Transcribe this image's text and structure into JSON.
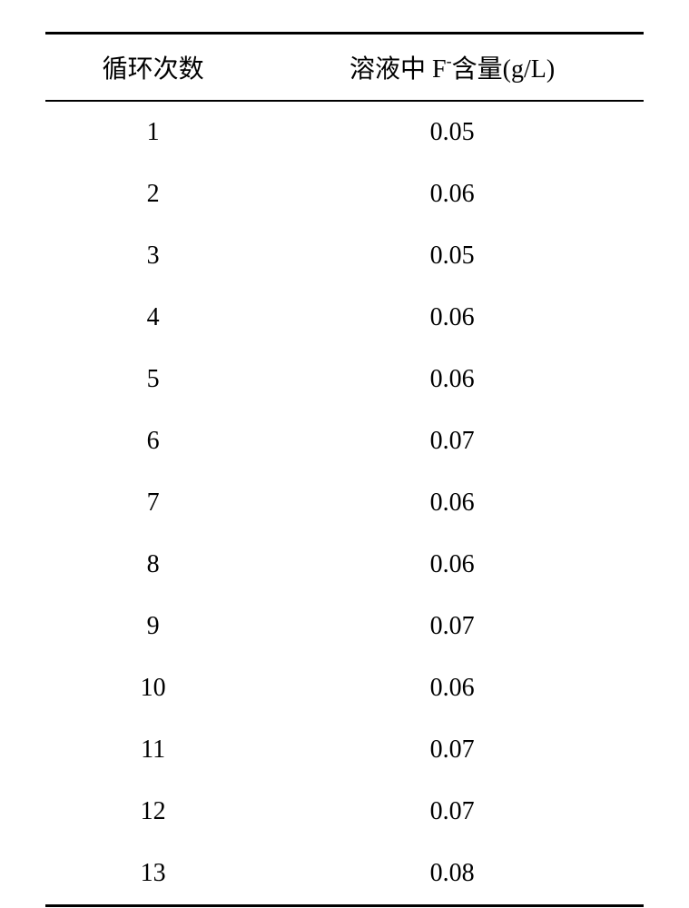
{
  "table": {
    "headers": {
      "col1": "循环次数",
      "col2_prefix": "溶液中 F",
      "col2_superscript": "-",
      "col2_suffix": "含量(g/L)"
    },
    "rows": [
      {
        "cycle": "1",
        "value": "0.05"
      },
      {
        "cycle": "2",
        "value": "0.06"
      },
      {
        "cycle": "3",
        "value": "0.05"
      },
      {
        "cycle": "4",
        "value": "0.06"
      },
      {
        "cycle": "5",
        "value": "0.06"
      },
      {
        "cycle": "6",
        "value": "0.07"
      },
      {
        "cycle": "7",
        "value": "0.06"
      },
      {
        "cycle": "8",
        "value": "0.06"
      },
      {
        "cycle": "9",
        "value": "0.07"
      },
      {
        "cycle": "10",
        "value": "0.06"
      },
      {
        "cycle": "11",
        "value": "0.07"
      },
      {
        "cycle": "12",
        "value": "0.07"
      },
      {
        "cycle": "13",
        "value": "0.08"
      }
    ],
    "styling": {
      "header_fontsize": 28,
      "cell_fontsize": 28,
      "border_top_width": 3,
      "border_header_bottom_width": 2,
      "border_bottom_width": 3,
      "border_color": "#000000",
      "background_color": "#ffffff",
      "text_color": "#000000",
      "col1_width_pct": 36,
      "col2_width_pct": 64,
      "row_padding_vertical": 18,
      "header_padding_vertical": 16
    }
  }
}
